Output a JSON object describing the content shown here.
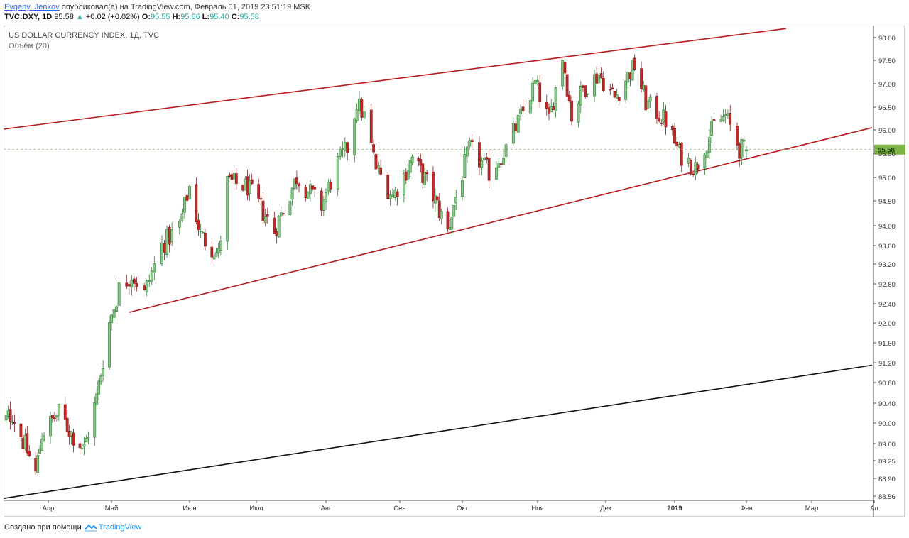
{
  "header": {
    "author": "Evgeny_Jenkov",
    "published_text": "опубликовал(а) на TradingView.com, Февраль 01, 2019 23:51:19 MSK",
    "symbol": "TVC:DXY, 1D",
    "last": "95.58",
    "change": "+0.02 (+0.02%)",
    "o_label": "O:",
    "o": "95.55",
    "h_label": "H:",
    "h": "95.66",
    "l_label": "L:",
    "l": "95.40",
    "c_label": "C:",
    "c": "95.58",
    "up_icon": "triangle-up-icon"
  },
  "footer": {
    "created_with": "Создано при помощи",
    "brand": "TradingView",
    "brand_icon": "tradingview-logo-icon"
  },
  "colors": {
    "up_fill": "#8bc78b",
    "up_border": "#2e7d32",
    "down_fill": "#c62828",
    "down_border": "#7f1d1d",
    "trend_red": "#b71c1c",
    "trend_black": "#111111",
    "last_price": "#7cb342",
    "grid": "#e6e6e6"
  },
  "chart_data": {
    "type": "candlestick",
    "title": "US DOLLAR CURRENCY INDEX, 1Д, TVC",
    "subtitle": "Объём (20)",
    "y_ticks": [
      "98.00",
      "97.50",
      "97.00",
      "96.50",
      "96.00",
      "95.50",
      "95.00",
      "94.50",
      "94.00",
      "93.60",
      "93.20",
      "92.80",
      "92.40",
      "92.00",
      "91.60",
      "91.20",
      "90.80",
      "90.40",
      "90.00",
      "89.60",
      "89.25",
      "88.90",
      "88.56"
    ],
    "x_ticks": [
      "Апр",
      "Май",
      "Июн",
      "Июл",
      "Авг",
      "Сен",
      "Окт",
      "Ноя",
      "Дек",
      "2019",
      "Фев",
      "Мар",
      "Ап"
    ],
    "last_price_label": "95.58",
    "trend_lines": [
      {
        "name": "upper-channel",
        "color": "trend_red",
        "p1": {
          "date": "2018-03-08",
          "price": 96.0
        },
        "p2": {
          "date": "2019-02-18",
          "price": 98.2
        }
      },
      {
        "name": "lower-support",
        "color": "trend_red",
        "p1": {
          "date": "2018-05-08",
          "price": 92.22
        },
        "p2": {
          "date": "2019-03-31",
          "price": 96.05
        }
      },
      {
        "name": "long-support",
        "color": "trend_black",
        "p1": {
          "date": "2018-03-08",
          "price": 88.5
        },
        "p2": {
          "date": "2019-03-31",
          "price": 91.15
        }
      }
    ],
    "anchors": [
      {
        "date": "2018-03-08",
        "close": 89.9
      },
      {
        "date": "2018-03-15",
        "close": 90.2
      },
      {
        "date": "2018-03-26",
        "close": 89.0
      },
      {
        "date": "2018-03-29",
        "close": 89.8
      },
      {
        "date": "2018-04-06",
        "close": 90.2
      },
      {
        "date": "2018-04-12",
        "close": 89.8
      },
      {
        "date": "2018-04-18",
        "close": 89.5
      },
      {
        "date": "2018-04-24",
        "close": 90.5
      },
      {
        "date": "2018-04-30",
        "close": 92.0
      },
      {
        "date": "2018-05-04",
        "close": 92.7
      },
      {
        "date": "2018-05-09",
        "close": 93.0
      },
      {
        "date": "2018-05-14",
        "close": 92.6
      },
      {
        "date": "2018-05-21",
        "close": 93.6
      },
      {
        "date": "2018-05-28",
        "close": 94.0
      },
      {
        "date": "2018-06-01",
        "close": 94.8
      },
      {
        "date": "2018-06-06",
        "close": 93.8
      },
      {
        "date": "2018-06-14",
        "close": 93.4
      },
      {
        "date": "2018-06-18",
        "close": 94.9
      },
      {
        "date": "2018-06-27",
        "close": 94.8
      },
      {
        "date": "2018-07-09",
        "close": 93.9
      },
      {
        "date": "2018-07-19",
        "close": 95.0
      },
      {
        "date": "2018-07-30",
        "close": 94.4
      },
      {
        "date": "2018-08-06",
        "close": 95.3
      },
      {
        "date": "2018-08-10",
        "close": 95.6
      },
      {
        "date": "2018-08-14",
        "close": 96.6
      },
      {
        "date": "2018-08-17",
        "close": 96.3
      },
      {
        "date": "2018-08-22",
        "close": 95.2
      },
      {
        "date": "2018-08-29",
        "close": 94.6
      },
      {
        "date": "2018-09-07",
        "close": 95.4
      },
      {
        "date": "2018-09-14",
        "close": 94.9
      },
      {
        "date": "2018-09-24",
        "close": 93.9
      },
      {
        "date": "2018-10-04",
        "close": 95.6
      },
      {
        "date": "2018-10-12",
        "close": 95.1
      },
      {
        "date": "2018-10-19",
        "close": 95.6
      },
      {
        "date": "2018-10-26",
        "close": 96.4
      },
      {
        "date": "2018-10-31",
        "close": 97.0
      },
      {
        "date": "2018-11-06",
        "close": 96.2
      },
      {
        "date": "2018-11-12",
        "close": 97.6
      },
      {
        "date": "2018-11-16",
        "close": 96.3
      },
      {
        "date": "2018-11-21",
        "close": 96.9
      },
      {
        "date": "2018-11-28",
        "close": 97.2
      },
      {
        "date": "2018-12-05",
        "close": 96.7
      },
      {
        "date": "2018-12-14",
        "close": 97.4
      },
      {
        "date": "2018-12-19",
        "close": 96.6
      },
      {
        "date": "2018-12-28",
        "close": 96.2
      },
      {
        "date": "2019-01-03",
        "close": 95.5
      },
      {
        "date": "2019-01-10",
        "close": 95.2
      },
      {
        "date": "2019-01-18",
        "close": 96.1
      },
      {
        "date": "2019-01-23",
        "close": 96.3
      },
      {
        "date": "2019-01-29",
        "close": 95.6
      },
      {
        "date": "2019-02-01",
        "close": 95.58
      }
    ]
  }
}
